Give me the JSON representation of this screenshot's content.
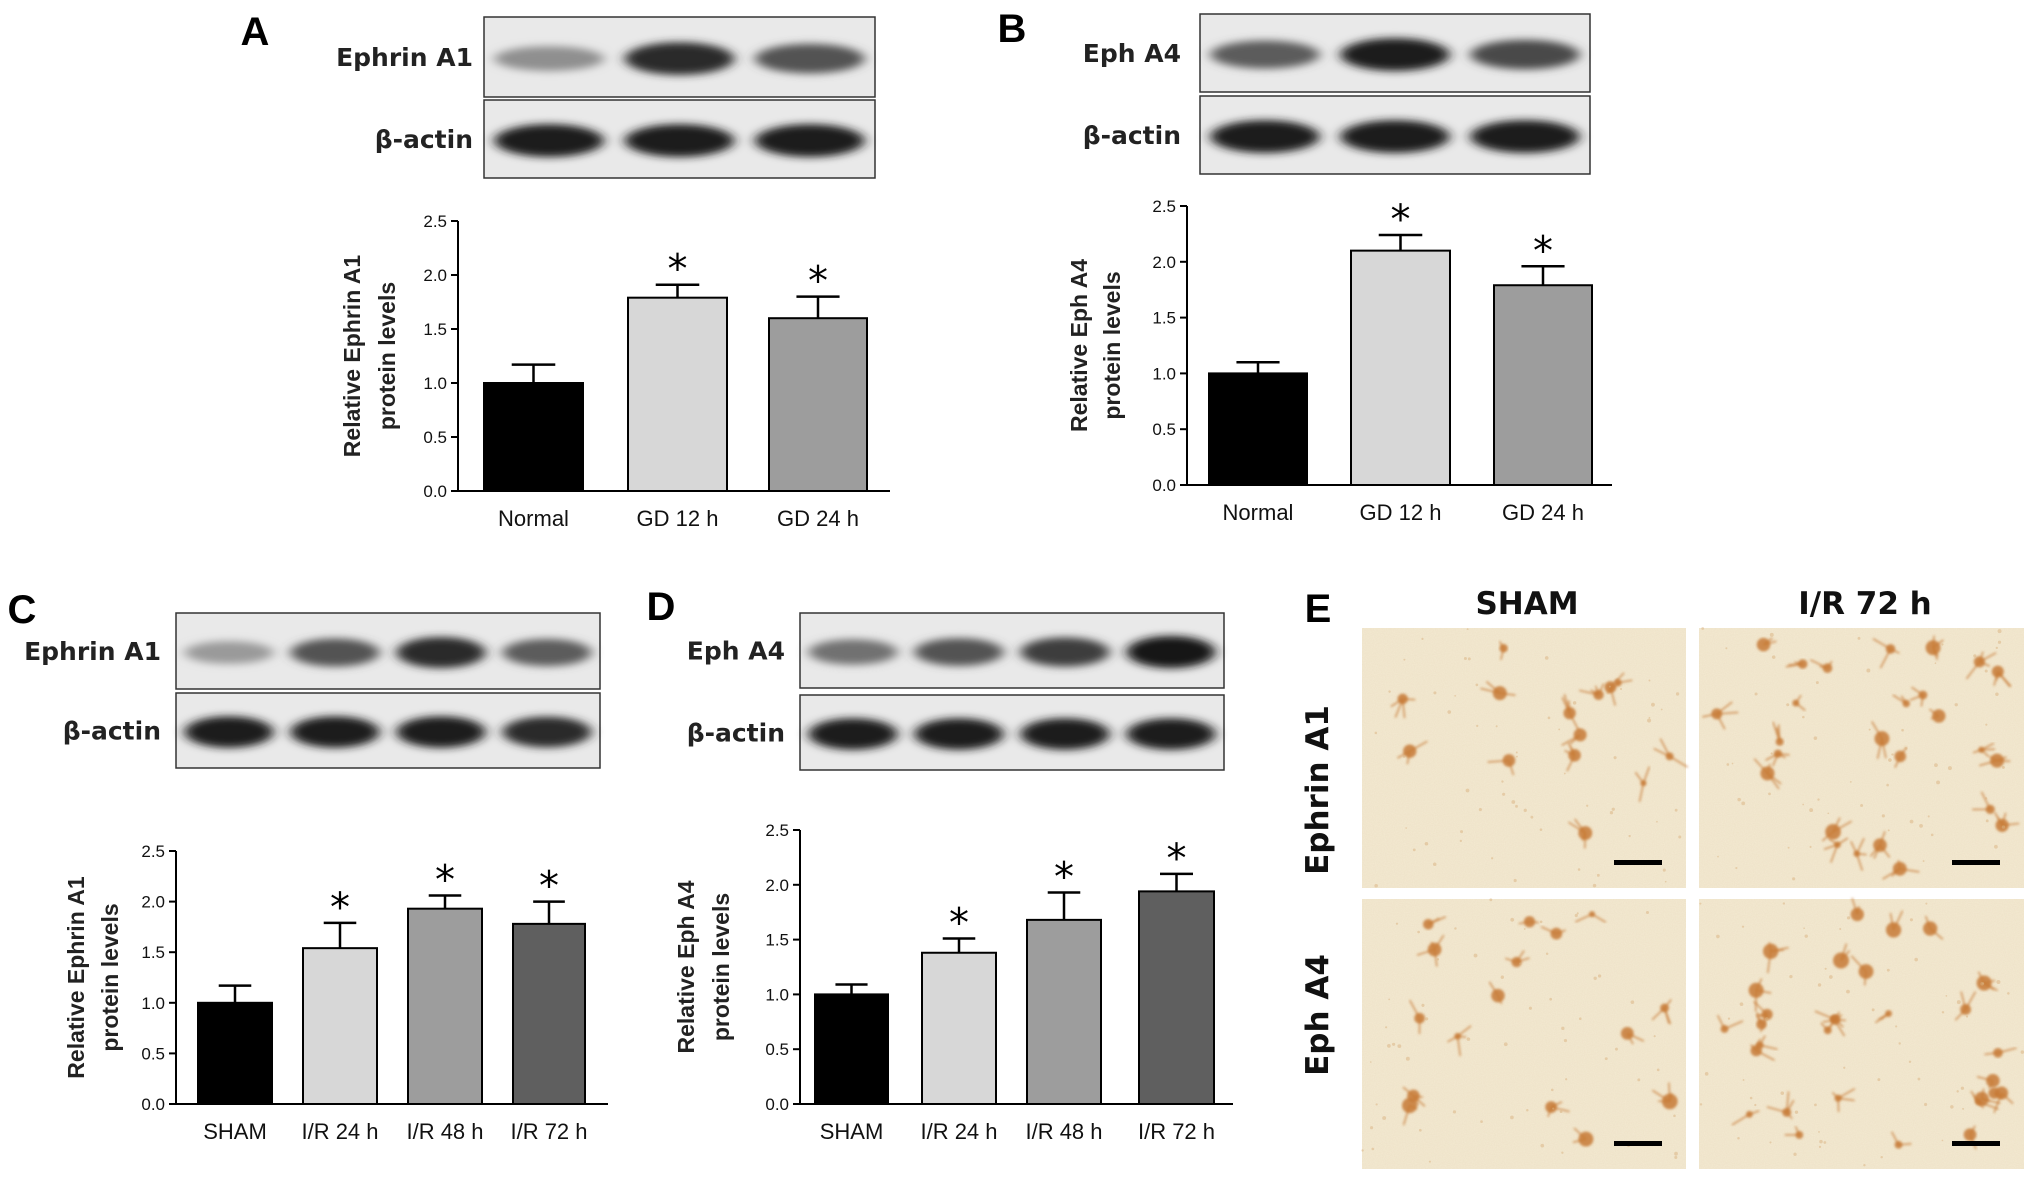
{
  "panels": [
    {
      "letter": "A",
      "blot_labels": [
        "Ephrin A1",
        "β-actin"
      ],
      "band_intensity": [
        [
          0.35,
          0.85,
          0.65
        ],
        [
          0.9,
          0.9,
          0.9
        ]
      ],
      "chart_data": {
        "type": "bar",
        "categories": [
          "Normal",
          "GD 12 h",
          "GD 24 h"
        ],
        "values": [
          1.0,
          1.79,
          1.6
        ],
        "errors": [
          0.17,
          0.12,
          0.2
        ],
        "significant": [
          false,
          true,
          true
        ],
        "colors": [
          "#000000",
          "#d7d7d7",
          "#9d9d9d"
        ],
        "ylabel": "Relative Ephrin A1 protein levels",
        "ylabel_lines": [
          "Relative Ephrin A1",
          "protein levels"
        ],
        "ylim": [
          0,
          2.5
        ],
        "yticks": [
          "0.0",
          "0.5",
          "1.0",
          "1.5",
          "2.0",
          "2.5"
        ],
        "significance_marker": "*"
      }
    },
    {
      "letter": "B",
      "blot_labels": [
        "Eph A4",
        "β-actin"
      ],
      "band_intensity": [
        [
          0.6,
          0.9,
          0.7
        ],
        [
          0.9,
          0.9,
          0.9
        ]
      ],
      "chart_data": {
        "type": "bar",
        "categories": [
          "Normal",
          "GD 12 h",
          "GD 24 h"
        ],
        "values": [
          1.0,
          2.1,
          1.79
        ],
        "errors": [
          0.1,
          0.14,
          0.17
        ],
        "significant": [
          false,
          true,
          true
        ],
        "colors": [
          "#000000",
          "#d7d7d7",
          "#9d9d9d"
        ],
        "ylabel": "Relative Eph A4 protein levels",
        "ylabel_lines": [
          "Relative Eph A4",
          "protein levels"
        ],
        "ylim": [
          0,
          2.5
        ],
        "yticks": [
          "0.0",
          "0.5",
          "1.0",
          "1.5",
          "2.0",
          "2.5"
        ],
        "significance_marker": "*"
      }
    },
    {
      "letter": "C",
      "blot_labels": [
        "Ephrin A1",
        "β-actin"
      ],
      "band_intensity": [
        [
          0.3,
          0.65,
          0.85,
          0.6
        ],
        [
          0.9,
          0.9,
          0.9,
          0.85
        ]
      ],
      "chart_data": {
        "type": "bar",
        "categories": [
          "SHAM",
          "I/R 24 h",
          "I/R 48 h",
          "I/R 72 h"
        ],
        "values": [
          1.0,
          1.54,
          1.93,
          1.78
        ],
        "errors": [
          0.17,
          0.25,
          0.13,
          0.22
        ],
        "significant": [
          false,
          true,
          true,
          true
        ],
        "colors": [
          "#000000",
          "#d7d7d7",
          "#9d9d9d",
          "#5f5f5f"
        ],
        "ylabel": "Relative Ephrin A1 protein levels",
        "ylabel_lines": [
          "Relative Ephrin A1",
          "protein levels"
        ],
        "ylim": [
          0,
          2.5
        ],
        "yticks": [
          "0.0",
          "0.5",
          "1.0",
          "1.5",
          "2.0",
          "2.5"
        ],
        "significance_marker": "*"
      }
    },
    {
      "letter": "D",
      "blot_labels": [
        "Eph A4",
        "β-actin"
      ],
      "band_intensity": [
        [
          0.5,
          0.65,
          0.75,
          0.95
        ],
        [
          0.9,
          0.9,
          0.9,
          0.9
        ]
      ],
      "chart_data": {
        "type": "bar",
        "categories": [
          "SHAM",
          "I/R 24 h",
          "I/R 48 h",
          "I/R 72 h"
        ],
        "values": [
          1.0,
          1.38,
          1.68,
          1.94
        ],
        "errors": [
          0.09,
          0.13,
          0.25,
          0.16
        ],
        "significant": [
          false,
          true,
          true,
          true
        ],
        "colors": [
          "#000000",
          "#d7d7d7",
          "#9d9d9d",
          "#5f5f5f"
        ],
        "ylabel": "Relative Eph A4 protein levels",
        "ylabel_lines": [
          "Relative Eph A4",
          "protein levels"
        ],
        "ylim": [
          0,
          2.5
        ],
        "yticks": [
          "0.0",
          "0.5",
          "1.0",
          "1.5",
          "2.0",
          "2.5"
        ],
        "significance_marker": "*"
      }
    }
  ],
  "panel_e": {
    "letter": "E",
    "columns": [
      "SHAM",
      "I/R 72 h"
    ],
    "rows": [
      "Ephrin A1",
      "Eph A4"
    ],
    "background_color": "#f4ead2",
    "stain_color": "#c77a35",
    "cell_density": [
      [
        14,
        26
      ],
      [
        16,
        30
      ]
    ]
  }
}
